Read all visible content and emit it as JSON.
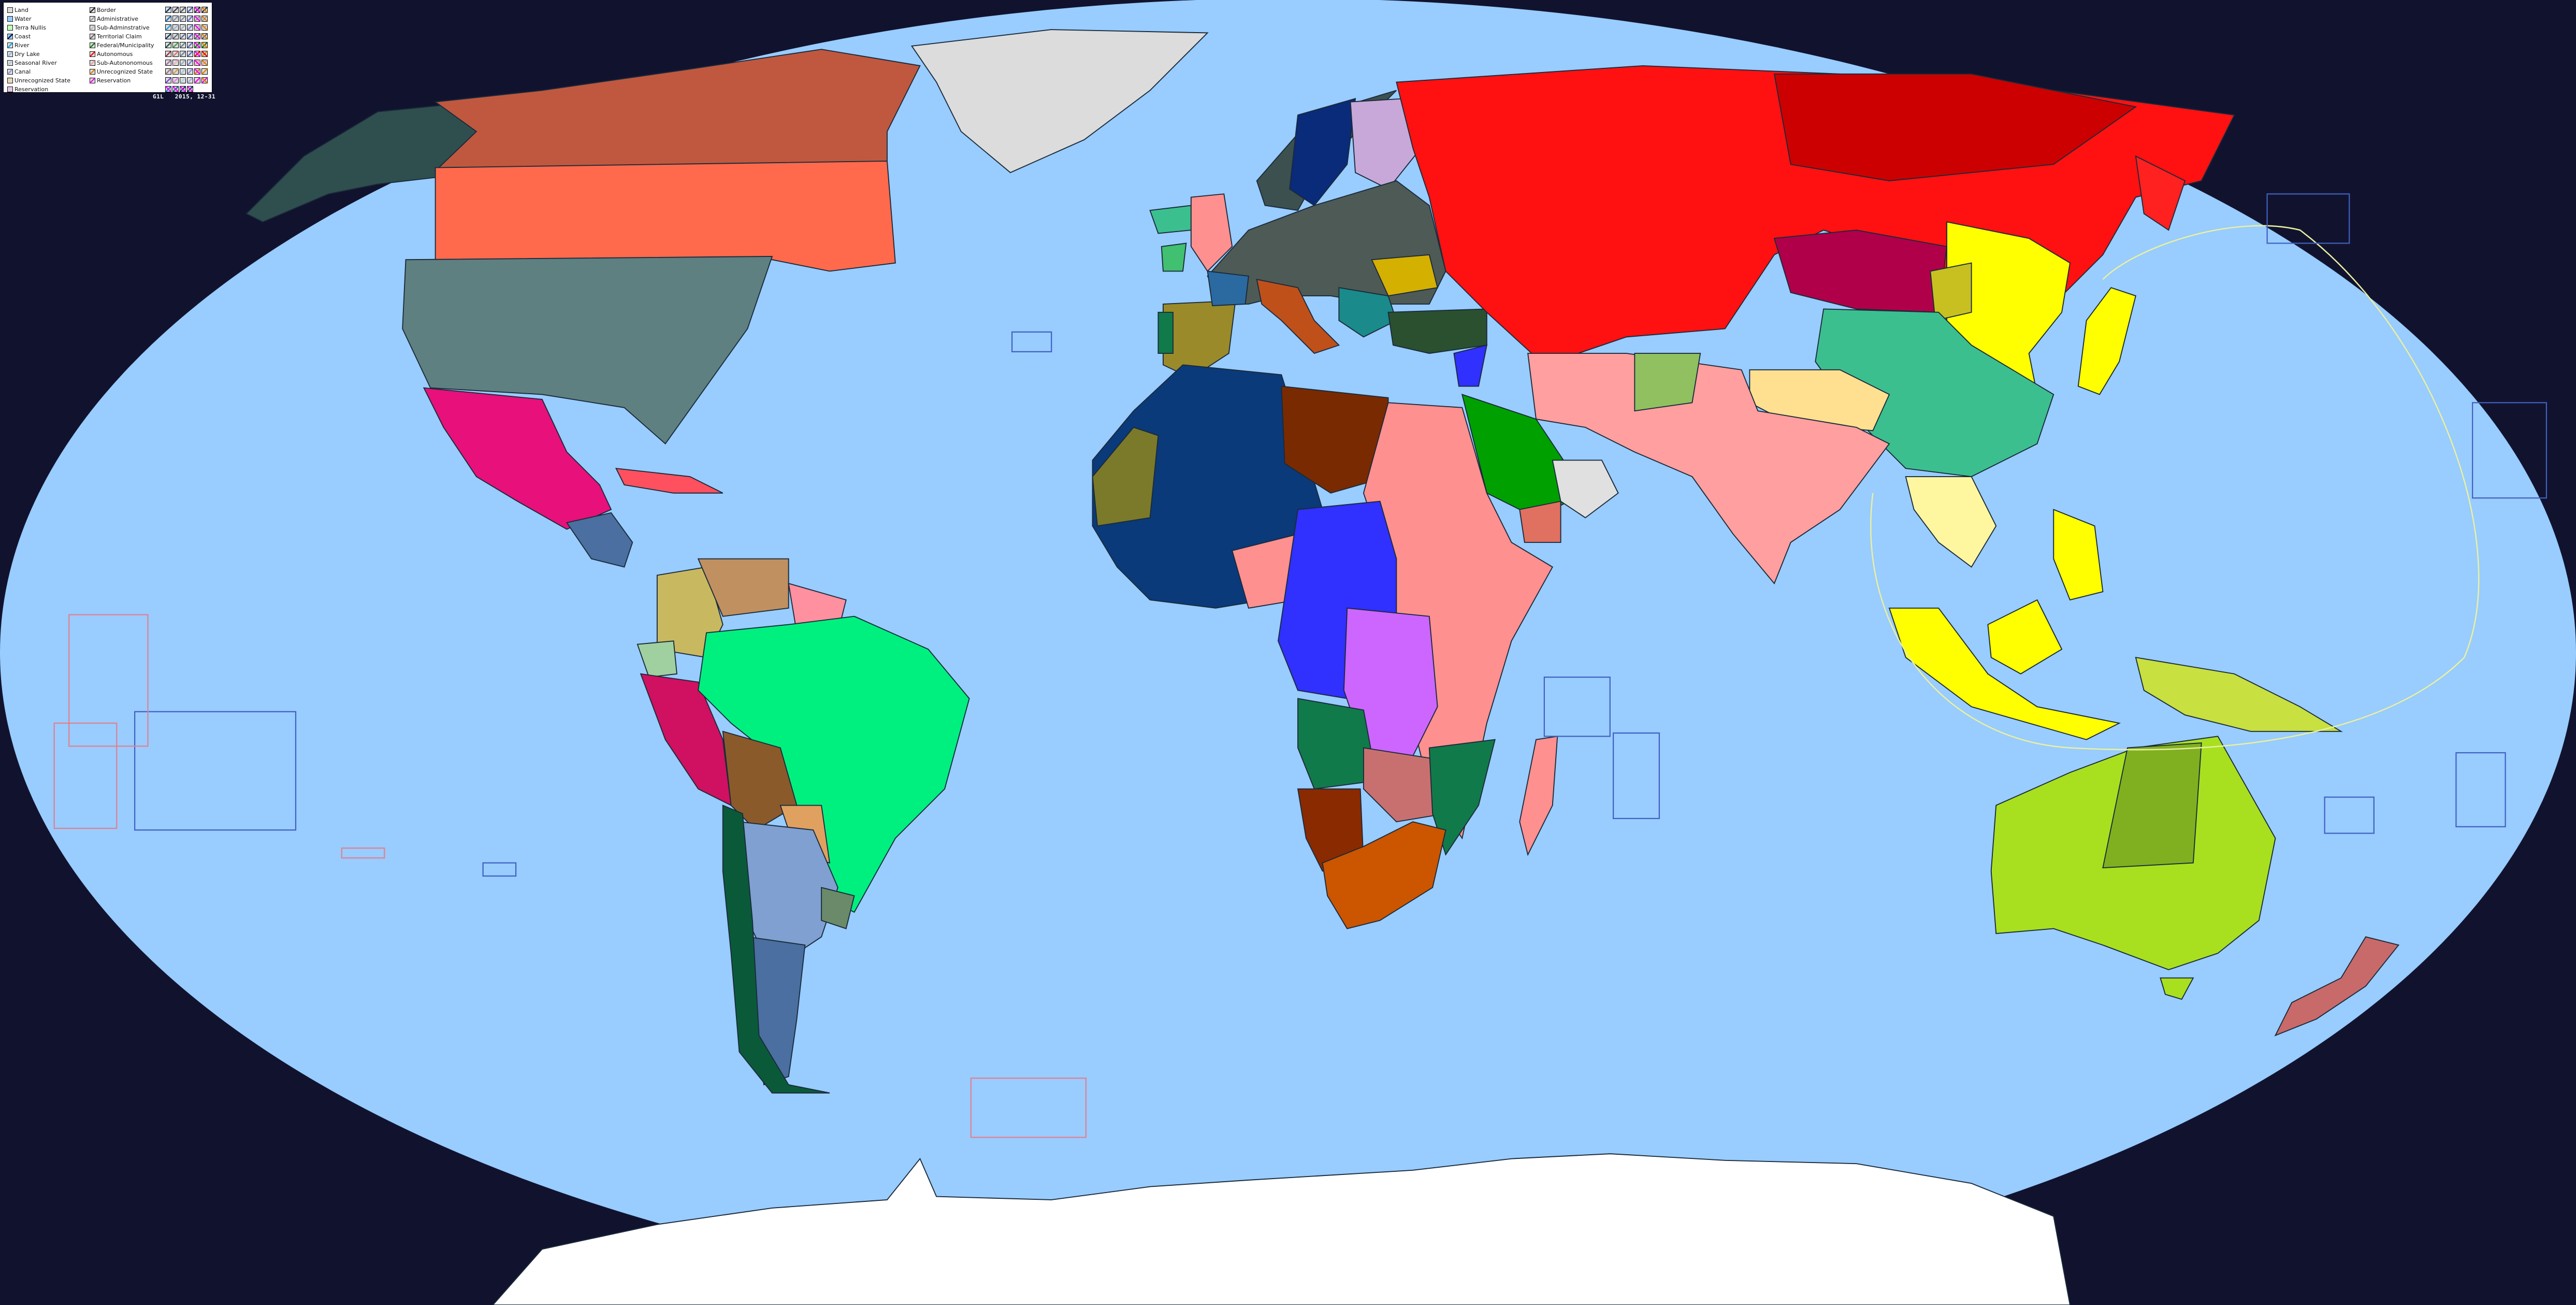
{
  "legend": {
    "left_column": [
      {
        "label": "Land",
        "fill": "#dddddd",
        "line": null
      },
      {
        "label": "Water",
        "fill": "#99ccff",
        "line": null
      },
      {
        "label": "Terra Nullis",
        "fill": "#bfffbf",
        "line": null
      },
      {
        "label": "Coast",
        "fill": "#99ccff",
        "line": "#0a0a2a"
      },
      {
        "label": "River",
        "fill": "#dddddd",
        "line": "#10a8e8"
      },
      {
        "label": "Dry Lake",
        "fill": "#dddddd",
        "line": "#88b8f0"
      },
      {
        "label": "Seasonal River",
        "fill": "#dddddd",
        "line": "#a8c8d0"
      },
      {
        "label": "Canal",
        "fill": "#dddddd",
        "line": "#8898d8"
      },
      {
        "label": "Unrecognized State",
        "fill": "#e8d8c0",
        "line": null
      },
      {
        "label": "Reservation",
        "fill": "#e0c8e0",
        "line": null
      }
    ],
    "middle_column": [
      {
        "label": "Border",
        "line": "#222222"
      },
      {
        "label": "Administrative",
        "line": "#999999"
      },
      {
        "label": "Sub-Adminstrative",
        "line": "#bbbbbb"
      },
      {
        "label": "Territorial Claim",
        "line": "#666666"
      },
      {
        "label": "Federal/Municipality",
        "line": "#008000"
      },
      {
        "label": "Autonomous",
        "line": "#ff0000"
      },
      {
        "label": "Sub-Autononomous",
        "line": "#f0a0a0"
      },
      {
        "label": "Unrecognized State",
        "line": "#e08000"
      },
      {
        "label": "Reservation",
        "line": "#ff00ff"
      }
    ],
    "swatch_grid": [
      [
        "#0a3a6a",
        "#3a4050",
        "#505860",
        "#4060c0",
        "#ff00ff|#333333",
        "#e08000|#333333"
      ],
      [
        "#1070c0",
        "#8090b0",
        "#8090a0",
        "#6070d0",
        "#ff00ff|#999999",
        "#e08000|#999999"
      ],
      [
        "#20a0e0",
        "#a0b8d0",
        "#a0b0c0",
        "#7080d0",
        "#ff00ff|#bbbbbb",
        "#e08000|#bbbbbb"
      ],
      [
        "#0a3a6a",
        "#607080",
        "#607080",
        "#5060c0",
        "#ff00ff|#666666",
        "#e08000|#666666"
      ],
      [
        "#205040",
        "#40a040",
        "#608080",
        "#5070c0",
        "#ff00ff|#008000",
        "#e08000|#008000"
      ],
      [
        "#a03040",
        "#e07070",
        "#708090",
        "#5070c0",
        "#ff00ff|#ff0000",
        "#ff0000|#e08000"
      ],
      [
        "#a070a0",
        "#f0b0c0",
        "#90b0c0",
        "#7080d0",
        "#ff00ff|#f0a0a0",
        "#e08000|#f0a0a0"
      ],
      [
        "#a07080",
        "#e0a040",
        "#a0c8d8",
        "#8090d0",
        "#ff00ff|#e08000",
        "#e08000"
      ],
      [
        "#8040e0",
        "#e080f0",
        "#b0d0e0",
        "#a0b0e0",
        "#ff00ff",
        "#e08000|#ff00ff"
      ],
      [
        "#ff00ff|#1080c0",
        "#ff00ff|#1070a0",
        "#ff00ff|#0a3a6a",
        "#ff00ff|#0a3a6a"
      ]
    ]
  },
  "footer": {
    "code": "G1L",
    "date": "2015, 12-31"
  },
  "map": {
    "colors": {
      "background": "#11132e",
      "ocean": "#99ccff",
      "coast": "#1a2a3a",
      "ice_shelf": "#d8e8f4",
      "claim_line": "#e8f0a0",
      "box_outline": "#4060c0",
      "box_outline_pink": "#e08090"
    },
    "region_fills": {
      "greenland": "#dcdcdc",
      "alaska": "#2f4f4f",
      "canada_north": "#c0583f",
      "canada_south": "#ff6a4d",
      "usa": "#5f8080",
      "mexico": "#e8107a",
      "central_america": "#4a6fa0",
      "caribbean": "#ff5060",
      "colombia": "#c8b860",
      "venezuela": "#c09060",
      "guianas": "#ff90a0",
      "ecuador": "#a0d0a0",
      "peru": "#d01060",
      "brazil": "#00f07f",
      "bolivia": "#8b5a2b",
      "paraguay": "#e0a060",
      "argentina_north": "#7fa0d0",
      "argentina_south": "#4a6fa0",
      "chile": "#0a5a3a",
      "uruguay": "#6a8a6a",
      "iceland": "#3cbf8f",
      "ireland": "#40c070",
      "britain": "#ff9090",
      "scandinavia": "#3d5050",
      "sweden": "#0a2a7a",
      "finland": "#c8a8d8",
      "europe": "#4e5a55",
      "iberia": "#9a8a2a",
      "portugal": "#117a4a",
      "france_west": "#2a6aa0",
      "italy": "#c0501a",
      "balkans": "#1a8a8a",
      "ukraine": "#d4b000",
      "turkey": "#2a5030",
      "russia": "#ff1111",
      "russia_far_east": "#cc0000",
      "kamchatka": "#ff2020",
      "mongolia": "#b0004a",
      "china_yellow": "#ffff00",
      "inner_mongolia": "#c8c020",
      "china_west": "#3cbf8f",
      "tibet": "#ffe090",
      "south_asia": "#ff9f9f",
      "afghanistan": "#90c060",
      "arabia": "#00a000",
      "oman": "#e0e0e0",
      "yemen": "#e07060",
      "levant": "#3030ff",
      "japan": "#ffff00",
      "southeast_asia": "#fff6a0",
      "indonesia": "#ffff00",
      "new_guinea": "#c8e040",
      "australia": "#a8e020",
      "australia_inner": "#80b020",
      "new_zealand": "#c86a6a",
      "west_africa": "#0a3a7a",
      "mauritania": "#7a7a2a",
      "libya": "#7a2a00",
      "northeast_africa": "#ff9090",
      "central_africa": "#3030ff",
      "congo": "#cc66ff",
      "angola": "#117a4a",
      "namibia": "#8a2a00",
      "south_africa": "#cc5500",
      "zambia": "#c87070",
      "mozambique": "#117a4a",
      "madagascar": "#ff9090",
      "antarctica": "#ffffff"
    }
  }
}
